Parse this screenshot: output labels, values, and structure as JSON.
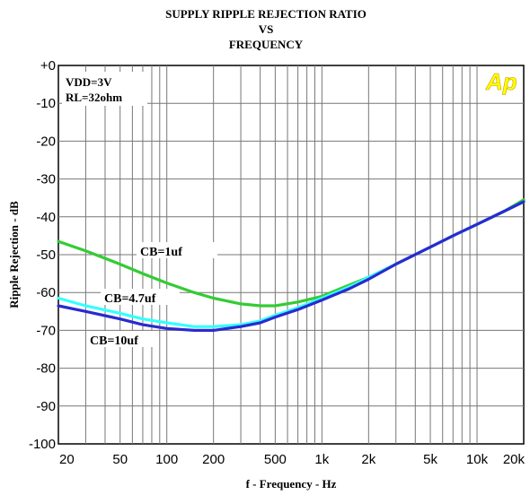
{
  "chart_data": {
    "type": "line",
    "title": [
      "SUPPLY RIPPLE REJECTION RATIO",
      "VS",
      "FREQUENCY"
    ],
    "xlabel": "f - Frequency - Hz",
    "ylabel": "Ripple Rejection - dB",
    "x_scale": "log",
    "xlim": [
      20,
      20000
    ],
    "ylim": [
      -100,
      0
    ],
    "grid": true,
    "x_ticks": [
      {
        "value": 20,
        "label": "20"
      },
      {
        "value": 50,
        "label": "50"
      },
      {
        "value": 100,
        "label": "100"
      },
      {
        "value": 200,
        "label": "200"
      },
      {
        "value": 500,
        "label": "500"
      },
      {
        "value": 1000,
        "label": "1k"
      },
      {
        "value": 2000,
        "label": "2k"
      },
      {
        "value": 5000,
        "label": "5k"
      },
      {
        "value": 10000,
        "label": "10k"
      },
      {
        "value": 20000,
        "label": "20k"
      }
    ],
    "y_ticks": [
      {
        "value": 0,
        "label": "+0"
      },
      {
        "value": -10,
        "label": "-10"
      },
      {
        "value": -20,
        "label": "-20"
      },
      {
        "value": -30,
        "label": "-30"
      },
      {
        "value": -40,
        "label": "-40"
      },
      {
        "value": -50,
        "label": "-50"
      },
      {
        "value": -60,
        "label": "-60"
      },
      {
        "value": -70,
        "label": "-70"
      },
      {
        "value": -80,
        "label": "-80"
      },
      {
        "value": -90,
        "label": "-90"
      },
      {
        "value": -100,
        "label": "-100"
      }
    ],
    "conditions": [
      "VDD=3V",
      "RL=32ohm"
    ],
    "logo": "Ap",
    "series": [
      {
        "name": "CB=1uf",
        "color": "#33cc33",
        "x": [
          20,
          30,
          50,
          70,
          100,
          150,
          200,
          300,
          400,
          500,
          700,
          1000,
          1500,
          2000,
          3000,
          5000,
          7000,
          10000,
          15000,
          20000
        ],
        "y": [
          -46.5,
          -49,
          -52.5,
          -55,
          -57.5,
          -60,
          -61.5,
          -63,
          -63.5,
          -63.5,
          -62.5,
          -61,
          -58,
          -56,
          -52.5,
          -48,
          -45,
          -42,
          -38.5,
          -35.5
        ]
      },
      {
        "name": "CB=4.7uf",
        "color": "#33ffff",
        "x": [
          20,
          30,
          50,
          70,
          100,
          150,
          200,
          300,
          400,
          500,
          700,
          1000,
          1500,
          2000,
          3000,
          5000,
          7000,
          10000,
          15000,
          20000
        ],
        "y": [
          -61.5,
          -63.5,
          -65.5,
          -67,
          -68,
          -69,
          -69,
          -68.5,
          -67.5,
          -66,
          -64,
          -61.5,
          -58.5,
          -56,
          -52.5,
          -48,
          -45,
          -42,
          -38.5,
          -36
        ]
      },
      {
        "name": "CB=10uf",
        "color": "#2a2ad0",
        "x": [
          20,
          30,
          50,
          70,
          100,
          150,
          200,
          300,
          400,
          500,
          700,
          1000,
          1500,
          2000,
          3000,
          5000,
          7000,
          10000,
          15000,
          20000
        ],
        "y": [
          -63.5,
          -65,
          -67,
          -68.5,
          -69.5,
          -70,
          -70,
          -69,
          -68,
          -66.5,
          -64.5,
          -62,
          -59,
          -56.5,
          -52.5,
          -48,
          -45,
          -42,
          -38.5,
          -36
        ]
      }
    ]
  }
}
